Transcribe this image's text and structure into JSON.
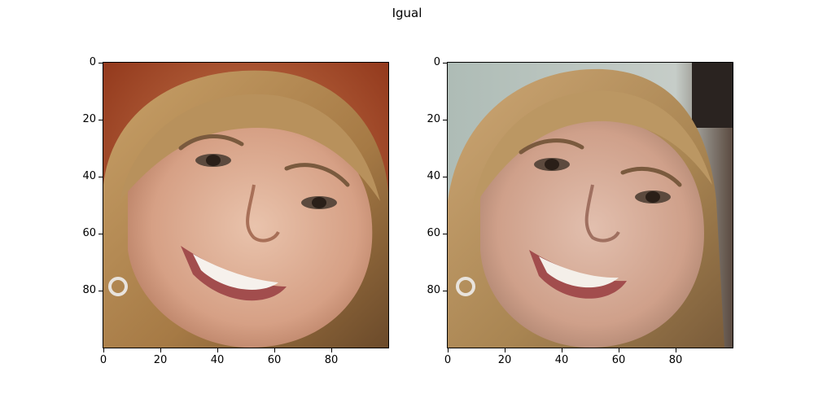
{
  "figure": {
    "title": "Igual"
  },
  "panels": [
    {
      "id": "left",
      "description": "face photo with red-brown background",
      "yticks": [
        "0",
        "20",
        "40",
        "60",
        "80"
      ],
      "xticks": [
        "0",
        "20",
        "40",
        "60",
        "80"
      ]
    },
    {
      "id": "right",
      "description": "face photo with grey-blue background",
      "yticks": [
        "0",
        "20",
        "40",
        "60",
        "80"
      ],
      "xticks": [
        "0",
        "20",
        "40",
        "60",
        "80"
      ]
    }
  ]
}
